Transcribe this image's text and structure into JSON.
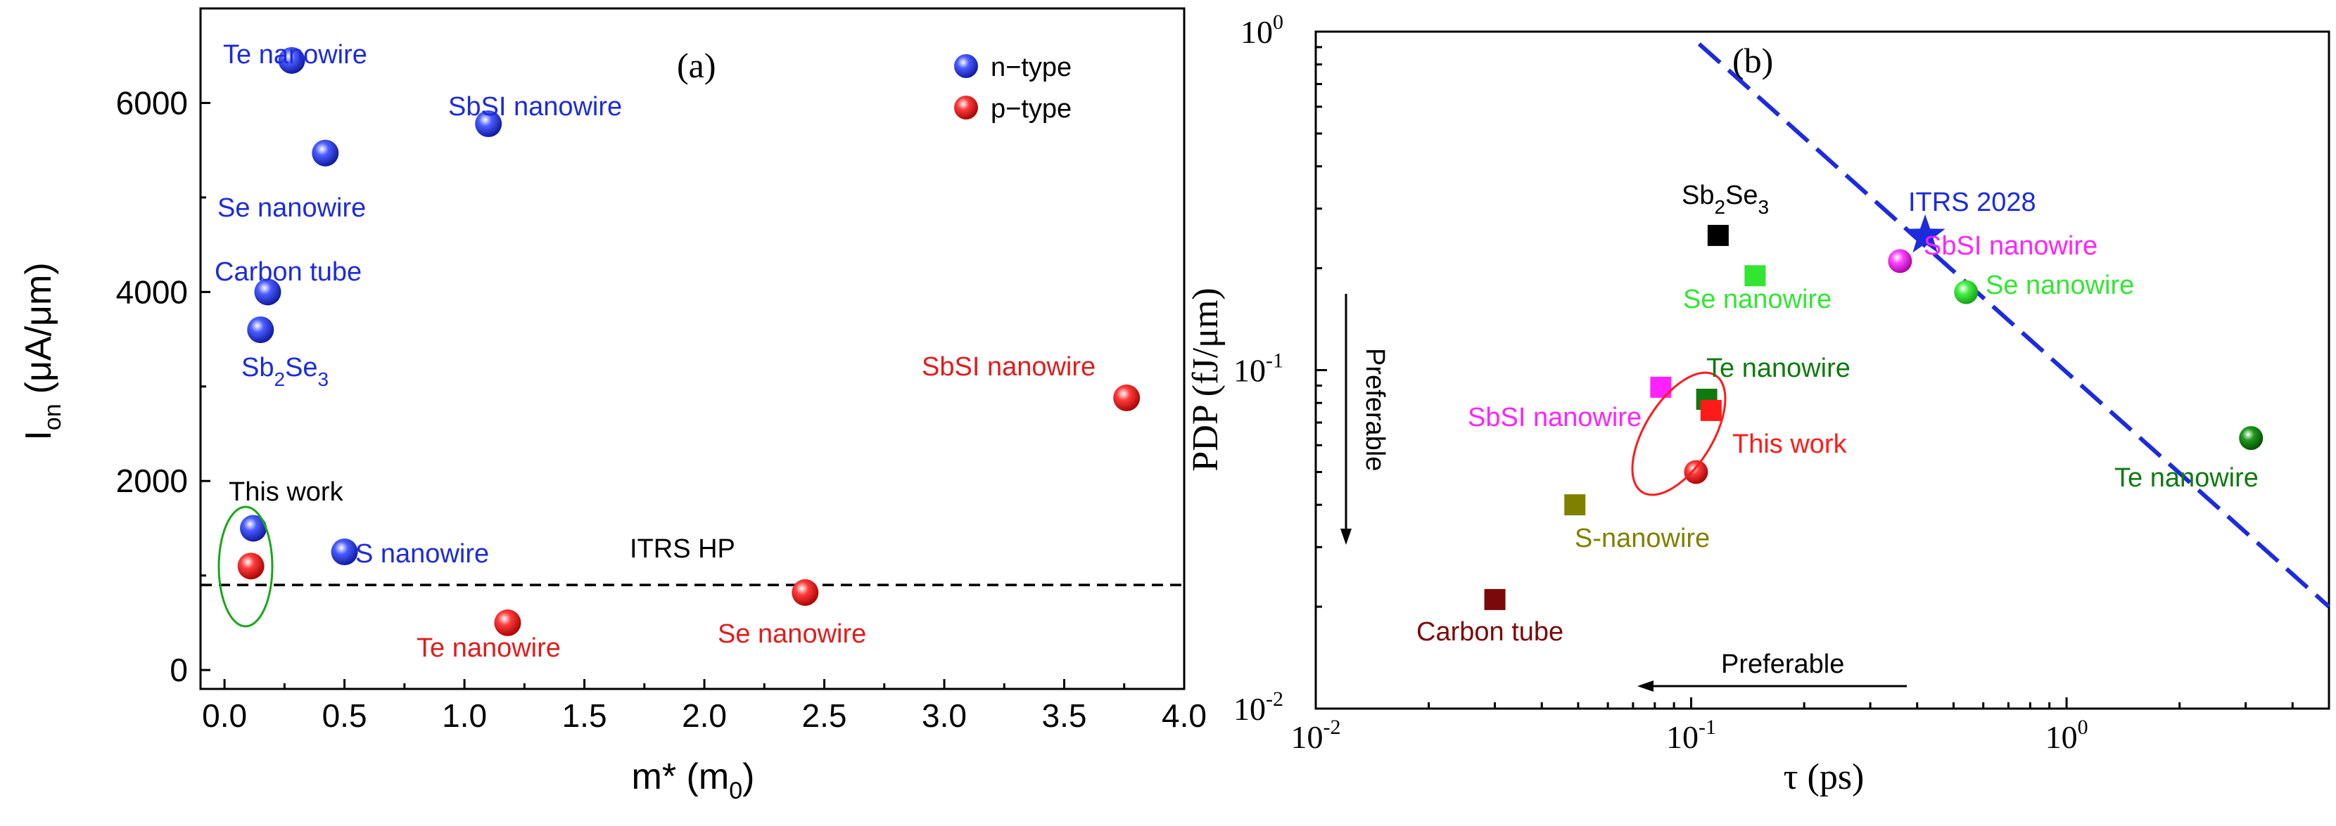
{
  "chart_data": [
    {
      "panel": "(a)",
      "type": "scatter",
      "title": "",
      "xlabel": "m* (m0)",
      "ylabel": "Ion (μA/μm)",
      "xlim": [
        -0.1,
        4.0
      ],
      "ylim": [
        -200,
        7000
      ],
      "xticks": [
        "0.0",
        "0.5",
        "1.0",
        "1.5",
        "2.0",
        "2.5",
        "3.0",
        "3.5",
        "4.0"
      ],
      "yticks": [
        "0",
        "2000",
        "4000",
        "6000"
      ],
      "legend": {
        "placement": "top-right",
        "entries": [
          "n−type",
          "p−type"
        ]
      },
      "colors": {
        "n_type": "#1c2bdc",
        "p_type": "#e01c1c"
      },
      "series": [
        {
          "name": "n−type",
          "points": [
            {
              "label": "Te nanowire",
              "x": 0.28,
              "y": 6450
            },
            {
              "label": "SbSI nanowire",
              "x": 1.1,
              "y": 5780
            },
            {
              "label": "Se nanowire",
              "x": 0.42,
              "y": 5470
            },
            {
              "label": "Carbon tube",
              "x": 0.18,
              "y": 4000
            },
            {
              "label": "Sb2Se3",
              "x": 0.15,
              "y": 3600
            },
            {
              "label": "This work",
              "x": 0.12,
              "y": 1500
            },
            {
              "label": "S nanowire",
              "x": 0.5,
              "y": 1250
            }
          ]
        },
        {
          "name": "p−type",
          "points": [
            {
              "label": "This work",
              "x": 0.11,
              "y": 1100
            },
            {
              "label": "Te nanowire",
              "x": 1.18,
              "y": 500
            },
            {
              "label": "Se nanowire",
              "x": 2.42,
              "y": 820
            },
            {
              "label": "SbSI nanowire",
              "x": 3.76,
              "y": 2880
            }
          ]
        }
      ],
      "reference_line": {
        "label": "ITRS HP",
        "y": 900,
        "style": "dashed"
      },
      "labels": {
        "te_n": "Te nanowire",
        "sbsi_n": "SbSI nanowire",
        "se_n": "Se nanowire",
        "carbon_n": "Carbon tube",
        "sb2se3_base": "Sb",
        "sb2se3_sub1": "2",
        "sb2se3_mid": "Se",
        "sb2se3_sub2": "3",
        "thiswork": "This work",
        "s_n": "S nanowire",
        "itrs": "ITRS HP",
        "te_p": "Te nanowire",
        "se_p": "Se nanowire",
        "sbsi_p": "SbSI nanowire"
      },
      "ylabel_parts": {
        "main": "I",
        "sub": "on",
        "unit": "(μA/μm)"
      },
      "xlabel_parts": {
        "main": "m* (m",
        "sub": "0",
        "end": ")"
      }
    },
    {
      "panel": "(b)",
      "type": "scatter",
      "title": "",
      "xlabel": "τ (ps)",
      "ylabel": "PDP (fJ/μm)",
      "xscale": "log",
      "yscale": "log",
      "xlim": [
        0.01,
        5.0
      ],
      "ylim": [
        0.01,
        1.0
      ],
      "xticks": [
        {
          "base": "10",
          "exp": "-2"
        },
        {
          "base": "10",
          "exp": "-1"
        },
        {
          "base": "10",
          "exp": "0"
        }
      ],
      "yticks": [
        {
          "base": "10",
          "exp": "-2"
        },
        {
          "base": "10",
          "exp": "-1"
        },
        {
          "base": "10",
          "exp": "0"
        }
      ],
      "series": [
        {
          "name": "squares",
          "points": [
            {
              "label": "Sb2Se3",
              "x": 0.118,
              "y": 0.25,
              "color": "#000000"
            },
            {
              "label": "Se nanowire",
              "x": 0.148,
              "y": 0.19,
              "color": "#33e533"
            },
            {
              "label": "SbSI nanowire",
              "x": 0.083,
              "y": 0.089,
              "color": "#ff22ff"
            },
            {
              "label": "Te nanowire",
              "x": 0.11,
              "y": 0.082,
              "color": "#0f7a0f"
            },
            {
              "label": "This work",
              "x": 0.113,
              "y": 0.076,
              "color": "#ff1a1a"
            },
            {
              "label": "S-nanowire",
              "x": 0.049,
              "y": 0.04,
              "color": "#808000"
            },
            {
              "label": "Carbon tube",
              "x": 0.03,
              "y": 0.021,
              "color": "#7a0a0a"
            }
          ]
        },
        {
          "name": "spheres",
          "points": [
            {
              "label": "SbSI nanowire",
              "x": 0.36,
              "y": 0.21,
              "color": "#ff22ff"
            },
            {
              "label": "Se nanowire",
              "x": 0.54,
              "y": 0.17,
              "color": "#33e533"
            },
            {
              "label": "This work",
              "x": 0.103,
              "y": 0.05,
              "color": "#ff1a1a"
            },
            {
              "label": "Te nanowire",
              "x": 3.1,
              "y": 0.063,
              "color": "#0f7a0f"
            }
          ]
        },
        {
          "name": "ITRS 2028",
          "points": [
            {
              "label": "ITRS 2028",
              "x": 0.42,
              "y": 0.25,
              "color": "#1c2bdc"
            }
          ]
        }
      ],
      "reference_line": {
        "style": "dashed",
        "points": [
          [
            0.105,
            0.92
          ],
          [
            5.0,
            0.02
          ]
        ],
        "color": "#1c2bdc"
      },
      "labels": {
        "sb2se3_base": "Sb",
        "sb2se3_sub1": "2",
        "sb2se3_mid": "Se",
        "sb2se3_sub2": "3",
        "itrs": "ITRS 2028",
        "sbsi_sphere": "SbSI nanowire",
        "se_sq": "Se nanowire",
        "se_sphere": "Se nanowire",
        "te_sq": "Te nanowire",
        "sbsi_sq": "SbSI nanowire",
        "thiswork": "This work",
        "te_sphere": "Te nanowire",
        "s_sq": "S-nanowire",
        "carbon_sq": "Carbon tube",
        "pref_v": "Preferable",
        "pref_h": "Preferable"
      }
    }
  ]
}
